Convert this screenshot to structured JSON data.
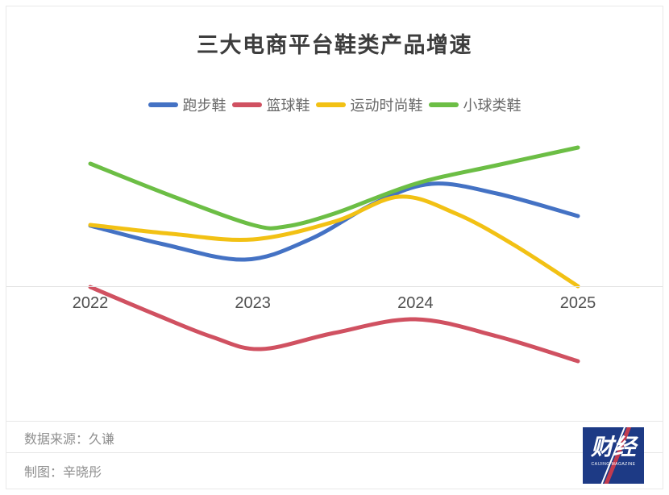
{
  "title": "三大电商平台鞋类产品增速",
  "legend": [
    {
      "label": "跑步鞋",
      "color": "#4472c4"
    },
    {
      "label": "篮球鞋",
      "color": "#d05161"
    },
    {
      "label": "运动时尚鞋",
      "color": "#f2c114"
    },
    {
      "label": "小球类鞋",
      "color": "#6cbe45"
    }
  ],
  "footer": {
    "source": "数据来源：久谦",
    "author": "制图：辛晓彤"
  },
  "logo": {
    "text": "财经",
    "caption": "CAIJING MAGAZINE",
    "background": "#1d3a85",
    "stripe_color": "#c23b4f"
  },
  "chart_data": {
    "type": "line",
    "title": "三大电商平台鞋类产品增速",
    "grid": false,
    "legend_position": "top",
    "x_axis": {
      "ticks": [
        "2022",
        "2023",
        "2024",
        "2025"
      ],
      "range": [
        2022,
        2025
      ]
    },
    "y_axis": {
      "visible": false,
      "zero_line_shown": true
    },
    "series": [
      {
        "name": "跑步鞋",
        "color": "#4472c4",
        "smooth": true,
        "points": [
          [
            2022,
            75
          ],
          [
            2022.45,
            52
          ],
          [
            2022.95,
            33
          ],
          [
            2023.35,
            58
          ],
          [
            2023.75,
            103
          ],
          [
            2024.1,
            127
          ],
          [
            2024.5,
            115
          ],
          [
            2025,
            87
          ]
        ]
      },
      {
        "name": "篮球鞋",
        "color": "#d05161",
        "smooth": true,
        "points": [
          [
            2022,
            -1
          ],
          [
            2022.4,
            -35
          ],
          [
            2022.75,
            -63
          ],
          [
            2023.05,
            -78
          ],
          [
            2023.5,
            -58
          ],
          [
            2024,
            -41
          ],
          [
            2024.5,
            -62
          ],
          [
            2025,
            -93
          ]
        ]
      },
      {
        "name": "运动时尚鞋",
        "color": "#f2c114",
        "smooth": true,
        "points": [
          [
            2022,
            76
          ],
          [
            2022.5,
            65
          ],
          [
            2023,
            58
          ],
          [
            2023.5,
            80
          ],
          [
            2023.9,
            111
          ],
          [
            2024.25,
            90
          ],
          [
            2024.6,
            52
          ],
          [
            2025,
            0
          ]
        ]
      },
      {
        "name": "小球类鞋",
        "color": "#6cbe45",
        "smooth": true,
        "points": [
          [
            2022,
            152
          ],
          [
            2022.5,
            112
          ],
          [
            2023,
            76
          ],
          [
            2023.2,
            74
          ],
          [
            2023.5,
            90
          ],
          [
            2024,
            127
          ],
          [
            2024.5,
            150
          ],
          [
            2025,
            172
          ]
        ]
      }
    ]
  }
}
